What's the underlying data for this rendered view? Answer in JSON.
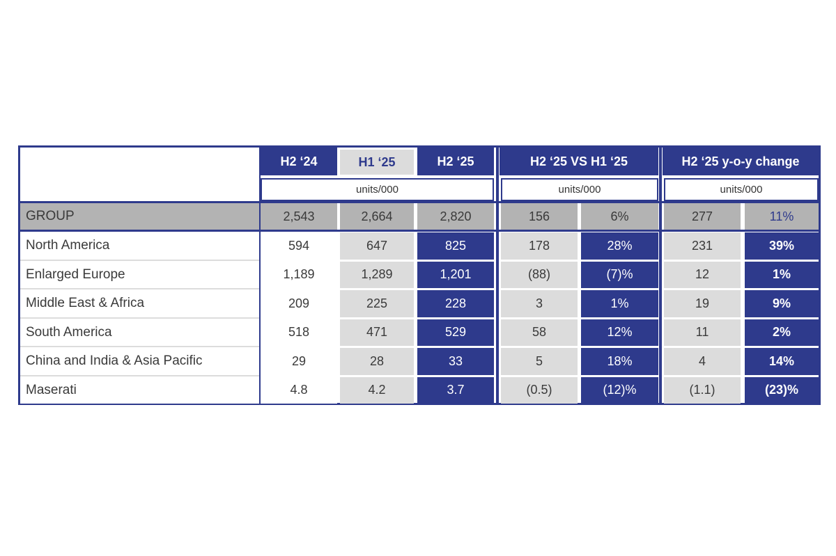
{
  "headers": {
    "col_h2_24": "H2 ‘24",
    "col_h1_25": "H1 ‘25",
    "col_h2_25": "H2 ‘25",
    "group_vs": "H2 ‘25 VS H1 ‘25",
    "group_yoy": "H2 ‘25 y-o-y change",
    "units_a": "units/000",
    "units_b": "units/000",
    "units_c": "units/000"
  },
  "group_row": {
    "label": "GROUP",
    "h2_24": "2,543",
    "h1_25": "2,664",
    "h2_25": "2,820",
    "vs_abs": "156",
    "vs_pct": "6%",
    "yoy_abs": "277",
    "yoy_pct": "11%"
  },
  "rows": [
    {
      "label": "North America",
      "h2_24": "594",
      "h1_25": "647",
      "h2_25": "825",
      "vs_abs": "178",
      "vs_pct": "28%",
      "yoy_abs": "231",
      "yoy_pct": "39%"
    },
    {
      "label": "Enlarged Europe",
      "h2_24": "1,189",
      "h1_25": "1,289",
      "h2_25": "1,201",
      "vs_abs": "(88)",
      "vs_pct": "(7)%",
      "yoy_abs": "12",
      "yoy_pct": "1%"
    },
    {
      "label": "Middle East & Africa",
      "h2_24": "209",
      "h1_25": "225",
      "h2_25": "228",
      "vs_abs": "3",
      "vs_pct": "1%",
      "yoy_abs": "19",
      "yoy_pct": "9%"
    },
    {
      "label": "South America",
      "h2_24": "518",
      "h1_25": "471",
      "h2_25": "529",
      "vs_abs": "58",
      "vs_pct": "12%",
      "yoy_abs": "11",
      "yoy_pct": "2%"
    },
    {
      "label": "China and India & Asia Pacific",
      "h2_24": "29",
      "h1_25": "28",
      "h2_25": "33",
      "vs_abs": "5",
      "vs_pct": "18%",
      "yoy_abs": "4",
      "yoy_pct": "14%"
    },
    {
      "label": "Maserati",
      "h2_24": "4.8",
      "h1_25": "4.2",
      "h2_25": "3.7",
      "vs_abs": "(0.5)",
      "vs_pct": "(12)%",
      "yoy_abs": "(1.1)",
      "yoy_pct": "(23)%"
    }
  ],
  "colors": {
    "navy": "#2e3a8c",
    "light_grey": "#dcdcdc",
    "group_grey": "#b3b3b3"
  }
}
